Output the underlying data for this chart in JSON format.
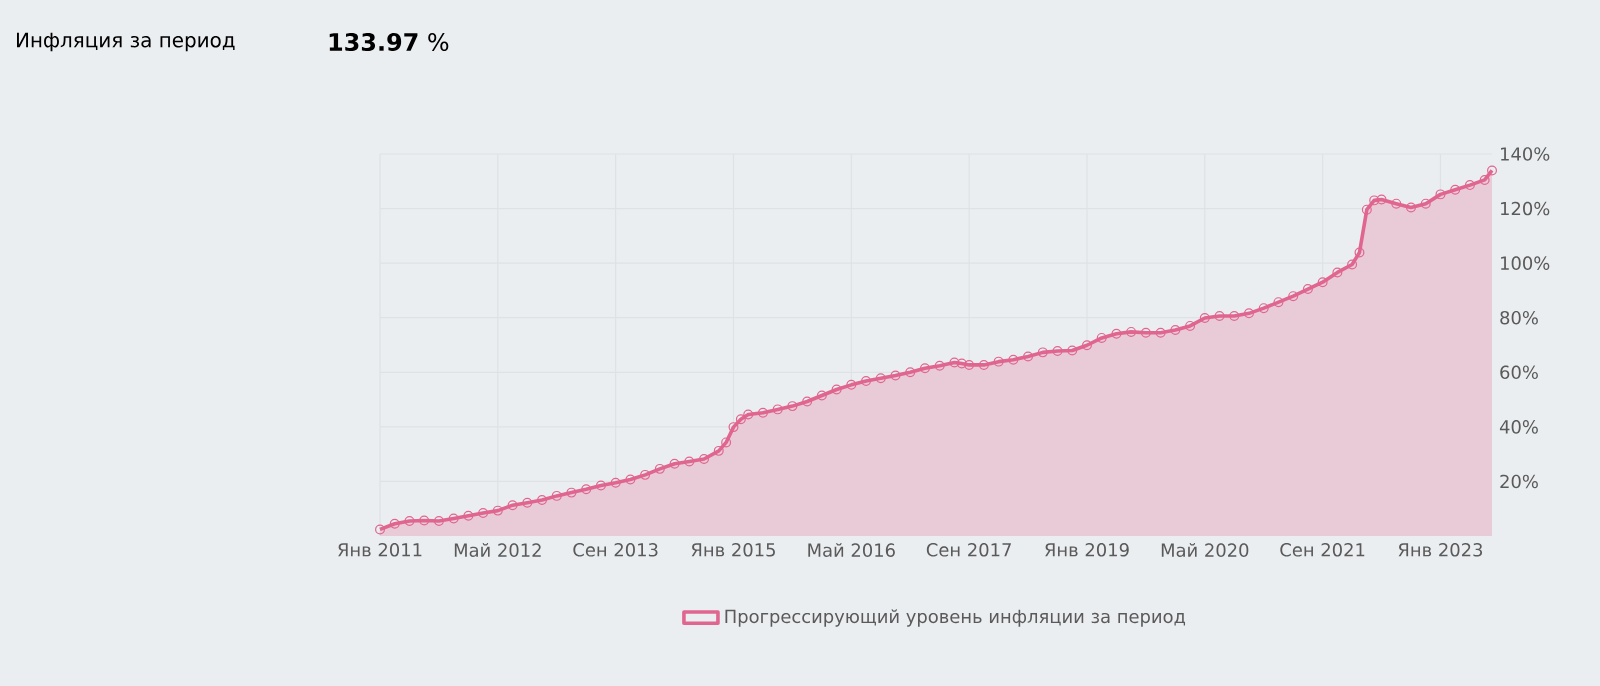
{
  "chart_data": {
    "type": "area",
    "title": "Инфляция за период",
    "annotations": [
      "**133.97** %"
    ],
    "x": [
      "2011-01",
      "2011-03",
      "2011-05",
      "2011-07",
      "2011-09",
      "2011-11",
      "2012-01",
      "2012-03",
      "2012-05",
      "2012-07",
      "2012-09",
      "2012-11",
      "2013-01",
      "2013-03",
      "2013-05",
      "2013-07",
      "2013-09",
      "2013-11",
      "2014-01",
      "2014-03",
      "2014-05",
      "2014-07",
      "2014-09",
      "2014-11",
      "2014-12",
      "2015-01",
      "2015-02",
      "2015-03",
      "2015-05",
      "2015-07",
      "2015-09",
      "2015-11",
      "2016-01",
      "2016-03",
      "2016-05",
      "2016-07",
      "2016-09",
      "2016-11",
      "2017-01",
      "2017-03",
      "2017-05",
      "2017-07",
      "2017-08",
      "2017-09",
      "2017-11",
      "2018-01",
      "2018-03",
      "2018-05",
      "2018-07",
      "2018-09",
      "2018-11",
      "2019-01",
      "2019-03",
      "2019-05",
      "2019-07",
      "2019-09",
      "2019-11",
      "2020-01",
      "2020-03",
      "2020-05",
      "2020-07",
      "2020-09",
      "2020-11",
      "2021-01",
      "2021-03",
      "2021-05",
      "2021-07",
      "2021-09",
      "2021-11",
      "2022-01",
      "2022-02",
      "2022-03",
      "2022-04",
      "2022-05",
      "2022-07",
      "2022-09",
      "2022-11",
      "2023-01",
      "2023-03",
      "2023-05",
      "2023-07",
      "2023-08"
    ],
    "series": [
      {
        "name": "Прогрессирующий уровень инфляции за период",
        "color": "#e0658f",
        "values": [
          2.4,
          4.5,
          5.5,
          5.7,
          5.5,
          6.4,
          7.4,
          8.4,
          9.3,
          11.3,
          12.2,
          13.2,
          14.7,
          15.9,
          17.1,
          18.5,
          19.5,
          20.7,
          22.4,
          24.6,
          26.5,
          27.3,
          28.2,
          31.2,
          34.3,
          39.9,
          42.8,
          44.5,
          45.2,
          46.4,
          47.6,
          49.3,
          51.5,
          53.7,
          55.4,
          56.8,
          57.8,
          58.8,
          60.0,
          61.5,
          62.4,
          63.6,
          63.2,
          62.7,
          62.7,
          63.9,
          64.6,
          65.8,
          67.3,
          67.8,
          68.0,
          69.9,
          72.6,
          74.1,
          74.8,
          74.5,
          74.5,
          75.5,
          77.0,
          79.9,
          80.6,
          80.6,
          81.6,
          83.5,
          85.7,
          87.9,
          90.5,
          93.0,
          96.6,
          99.5,
          103.9,
          119.6,
          123.0,
          123.3,
          121.8,
          120.4,
          121.8,
          125.2,
          126.9,
          128.6,
          130.5,
          133.97
        ]
      }
    ],
    "xlim": [
      "2011-01",
      "2023-08"
    ],
    "xticks": [
      {
        "value": "2011-01",
        "label": "Янв 2011"
      },
      {
        "value": "2012-05",
        "label": "Май 2012"
      },
      {
        "value": "2013-09",
        "label": "Сен 2013"
      },
      {
        "value": "2015-01",
        "label": "Янв 2015"
      },
      {
        "value": "2016-05",
        "label": "Май 2016"
      },
      {
        "value": "2017-09",
        "label": "Сен 2017"
      },
      {
        "value": "2019-01",
        "label": "Янв 2019"
      },
      {
        "value": "2020-05",
        "label": "Май 2020"
      },
      {
        "value": "2021-09",
        "label": "Сен 2021"
      },
      {
        "value": "2023-01",
        "label": "Янв 2023"
      }
    ],
    "ylim": [
      0,
      140
    ],
    "yticks": [
      {
        "value": 20,
        "label": "20%"
      },
      {
        "value": 40,
        "label": "40%"
      },
      {
        "value": 60,
        "label": "60%"
      },
      {
        "value": 80,
        "label": "80%"
      },
      {
        "value": 100,
        "label": "100%"
      },
      {
        "value": 120,
        "label": "120%"
      },
      {
        "value": 140,
        "label": "140%"
      }
    ],
    "grid": true,
    "legend": "bottom",
    "marker": "circle"
  }
}
